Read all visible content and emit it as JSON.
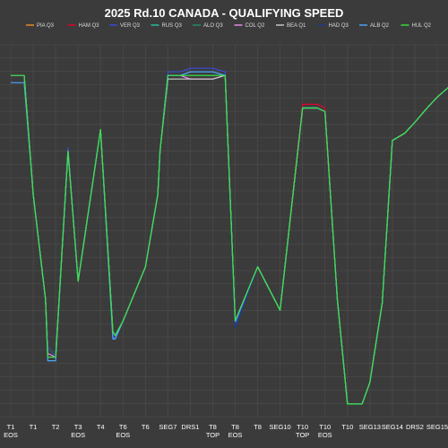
{
  "chart_data": {
    "type": "line",
    "title": "2025 Rd.10 CANADA - QUALIFYING SPEED",
    "xlabel": "",
    "ylabel": "",
    "grid": true,
    "legend_position": "top",
    "ylim": [
      0,
      100
    ],
    "categories": [
      "T1 EOS",
      "T1",
      "T2",
      "T3 EOS",
      "T4",
      "T6 EOS",
      "T6",
      "SEG7",
      "DRS1",
      "T8 TOP",
      "T8 EOS",
      "T8",
      "SEG10",
      "T10 TOP",
      "T10 EOS",
      "T10",
      "SEG13",
      "SEG14",
      "DRS2",
      "SEG15"
    ],
    "x": [
      0,
      0.55,
      0.6,
      1.0,
      1.55,
      1.65,
      2.0,
      2.55,
      3.0,
      4.0,
      4.55,
      4.65,
      5.0,
      6.0,
      6.55,
      6.65,
      7.0,
      7.55,
      8.0,
      9.0,
      9.55,
      10.0,
      11.0,
      12.0,
      13.0,
      13.55,
      13.65,
      14.0,
      14.55,
      15.0,
      15.55,
      15.65,
      16.0,
      16.55,
      17.0,
      17.55,
      18.0,
      18.55,
      19.0,
      19.55
    ],
    "series": [
      {
        "name": "PIA Q3",
        "color": "#f28c28",
        "values": [
          93,
          93,
          93,
          60,
          31,
          18,
          15,
          72,
          36,
          78,
          22,
          21,
          25,
          40,
          60,
          72,
          93,
          93,
          94,
          94,
          93,
          25,
          40,
          28,
          84,
          84,
          84,
          83,
          31,
          2,
          2,
          2,
          8,
          30,
          75,
          77,
          80,
          84,
          87,
          90
        ]
      },
      {
        "name": "HAM Q3",
        "color": "#e8002d",
        "values": [
          93,
          93,
          93,
          60,
          31,
          18,
          15,
          72,
          36,
          78,
          22,
          21,
          25,
          40,
          60,
          72,
          93,
          93,
          94,
          94,
          93,
          25,
          40,
          28,
          85,
          85,
          85,
          84,
          31,
          2,
          2,
          2,
          8,
          30,
          75,
          77,
          80,
          84,
          87,
          90
        ]
      },
      {
        "name": "VER Q3",
        "color": "#3a4bdc",
        "values": [
          93,
          93,
          93,
          60,
          31,
          15,
          15,
          73,
          36,
          78,
          21,
          20,
          25,
          40,
          60,
          72,
          94,
          94,
          95,
          95,
          94,
          24,
          40,
          28,
          84,
          84,
          84,
          83,
          31,
          2,
          2,
          2,
          8,
          30,
          75,
          77,
          80,
          84,
          87,
          90
        ]
      },
      {
        "name": "RUS Q3",
        "color": "#27c4a0",
        "values": [
          93,
          93,
          93,
          60,
          31,
          18,
          15,
          72,
          36,
          78,
          22,
          21,
          25,
          40,
          60,
          72,
          93,
          93,
          94,
          94,
          93,
          25,
          40,
          28,
          84,
          84,
          84,
          83,
          31,
          2,
          2,
          2,
          8,
          30,
          75,
          77,
          80,
          84,
          87,
          90
        ]
      },
      {
        "name": "ALO Q3",
        "color": "#1f8f6b",
        "values": [
          93,
          93,
          93,
          60,
          31,
          18,
          15,
          72,
          36,
          78,
          22,
          21,
          25,
          40,
          60,
          72,
          93,
          93,
          93,
          93,
          93,
          25,
          40,
          28,
          84,
          84,
          84,
          83,
          31,
          2,
          2,
          2,
          8,
          30,
          75,
          77,
          80,
          84,
          87,
          90
        ]
      },
      {
        "name": "COL Q2",
        "color": "#f48cf0",
        "values": [
          93,
          93,
          93,
          60,
          31,
          16,
          15,
          72,
          36,
          78,
          22,
          21,
          25,
          40,
          60,
          72,
          93,
          93,
          92,
          92,
          93,
          25,
          40,
          28,
          84,
          84,
          84,
          83,
          31,
          2,
          2,
          2,
          8,
          30,
          75,
          77,
          80,
          84,
          87,
          90
        ]
      },
      {
        "name": "BEA Q1",
        "color": "#cfcfcf",
        "values": [
          93,
          93,
          93,
          60,
          31,
          18,
          15,
          72,
          36,
          78,
          22,
          21,
          25,
          40,
          60,
          72,
          92,
          92,
          92,
          92,
          93,
          25,
          40,
          28,
          84,
          84,
          84,
          83,
          31,
          2,
          2,
          2,
          8,
          30,
          75,
          77,
          80,
          84,
          87,
          90
        ]
      },
      {
        "name": "HAD Q3",
        "color": "#1e3a8a",
        "values": [
          93,
          93,
          93,
          60,
          31,
          18,
          15,
          72,
          36,
          78,
          22,
          21,
          25,
          40,
          60,
          72,
          93,
          93,
          94,
          94,
          93,
          23,
          40,
          28,
          84,
          84,
          84,
          83,
          31,
          2,
          2,
          2,
          8,
          30,
          75,
          77,
          80,
          84,
          87,
          90
        ]
      },
      {
        "name": "ALB Q2",
        "color": "#4aa8ff",
        "values": [
          91,
          91,
          91,
          60,
          31,
          14,
          14,
          72,
          36,
          78,
          20,
          20,
          25,
          40,
          60,
          72,
          93,
          93,
          94,
          94,
          93,
          25,
          40,
          28,
          84,
          84,
          84,
          83,
          31,
          2,
          2,
          2,
          8,
          30,
          75,
          77,
          80,
          84,
          87,
          90
        ]
      },
      {
        "name": "HUL Q2",
        "color": "#39e33e",
        "values": [
          93,
          93,
          93,
          60,
          31,
          15,
          15,
          72,
          36,
          78,
          22,
          21,
          25,
          40,
          60,
          72,
          93,
          93,
          93,
          93,
          93,
          25,
          40,
          28,
          84,
          84,
          84,
          83,
          31,
          2,
          2,
          2,
          8,
          30,
          75,
          77,
          80,
          84,
          87,
          90
        ]
      }
    ]
  }
}
